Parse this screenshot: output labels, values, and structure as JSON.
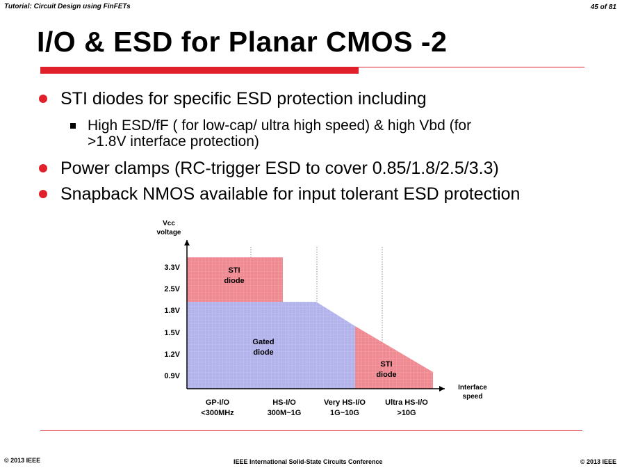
{
  "header": {
    "left": "Tutorial: Circuit Design using FinFETs",
    "right": "45 of 81"
  },
  "title": "I/O & ESD for Planar CMOS -2",
  "bullets": [
    {
      "text": "STI diodes for specific ESD protection including"
    },
    {
      "text": "Power clamps (RC-trigger ESD to cover 0.85/1.8/2.5/3.3)"
    },
    {
      "text": "Snapback NMOS available for input tolerant ESD protection"
    }
  ],
  "sub_bullet": {
    "line1": "High ESD/fF ( for low-cap/ ultra high speed) & high Vbd (for",
    "line2": ">1.8V interface protection)"
  },
  "chart_data": {
    "type": "area",
    "title": "",
    "ylabel": [
      "Vcc",
      "voltage"
    ],
    "xlabel": [
      "Interface",
      "speed"
    ],
    "y_ticks": [
      "3.3V",
      "2.5V",
      "1.8V",
      "1.5V",
      "1.2V",
      "0.9V"
    ],
    "x_categories": [
      [
        "GP-I/O",
        "<300MHz"
      ],
      [
        "HS-I/O",
        "300M~1G"
      ],
      [
        "Very HS-I/O",
        "1G~10G"
      ],
      [
        "Ultra HS-I/O",
        ">10G"
      ]
    ],
    "regions": [
      {
        "name": "STI diode",
        "label": [
          "STI",
          "diode"
        ],
        "color": "#f08a92",
        "x_range": [
          "GP-I/O",
          "HS-I/O"
        ],
        "y_range": [
          "1.8V",
          "3.3V"
        ]
      },
      {
        "name": "Gated diode",
        "label": [
          "Gated",
          "diode"
        ],
        "color": "#b3b3ec",
        "x_range": [
          "GP-I/O",
          "Very HS-I/O"
        ],
        "y_range": [
          "0.9V",
          "1.8V"
        ]
      },
      {
        "name": "STI diode",
        "label": [
          "STI",
          "diode"
        ],
        "color": "#f08a92",
        "x_range": [
          "Very HS-I/O",
          "Ultra HS-I/O"
        ],
        "y_range": [
          "0.9V",
          "1.5V"
        ]
      }
    ],
    "grid": true
  },
  "footer": {
    "left": "© 2013 IEEE",
    "center": "IEEE International Solid-State Circuits Conference",
    "right": "© 2013 IEEE"
  }
}
